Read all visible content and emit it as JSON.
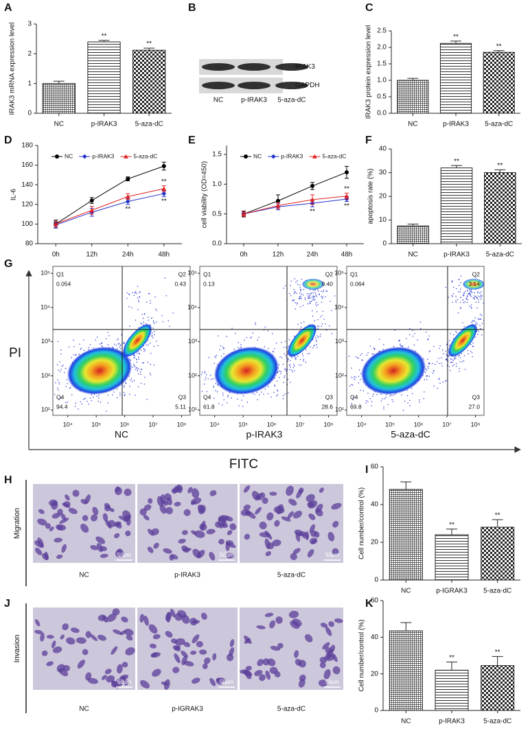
{
  "chart_data": [
    {
      "panel": "A",
      "type": "bar",
      "ylabel": "IRAK3 mRNA expression level",
      "categories": [
        "NC",
        "p-IRAK3",
        "5-aza-dC"
      ],
      "values": [
        1.0,
        2.4,
        2.12
      ],
      "errors": [
        0.08,
        0.05,
        0.07
      ],
      "significance": [
        null,
        "**",
        "**"
      ],
      "patterns": [
        "grid",
        "hlines",
        "checker"
      ],
      "color": "#222222",
      "ylim": [
        0,
        3
      ],
      "yticks": [
        0,
        1,
        2,
        3
      ]
    },
    {
      "panel": "C",
      "type": "bar",
      "ylabel": "IRAK3 protein expression level",
      "categories": [
        "NC",
        "p-IRAK3",
        "5-aza-dC"
      ],
      "values": [
        1.0,
        2.12,
        1.85
      ],
      "errors": [
        0.06,
        0.07,
        0.05
      ],
      "significance": [
        null,
        "**",
        "**"
      ],
      "patterns": [
        "grid",
        "hlines",
        "checker"
      ],
      "color": "#222222",
      "ylim": [
        0,
        2.5
      ],
      "yticks": [
        {
          "value": 0,
          "label": "0.0"
        },
        0.5,
        {
          "value": 1,
          "label": "1.0"
        },
        1.5,
        {
          "value": 2,
          "label": "2.0"
        },
        2.5
      ]
    },
    {
      "panel": "D",
      "type": "line",
      "ylabel": "IL-6",
      "categories": [
        "0h",
        "12h",
        "24h",
        "48h"
      ],
      "ylim": [
        80,
        180
      ],
      "yticks": [
        80,
        100,
        120,
        140,
        160,
        180
      ],
      "legend": "top",
      "series": [
        {
          "name": "NC",
          "color": "#000000",
          "marker": "circle",
          "values": [
            100,
            124,
            146,
            159
          ],
          "errors": [
            4,
            3,
            2,
            4
          ]
        },
        {
          "name": "p-IRAK3",
          "color": "#2233cc",
          "marker": "diamond",
          "values": [
            99,
            112,
            123,
            131
          ],
          "errors": [
            3,
            4,
            3,
            3
          ],
          "significance": [
            null,
            null,
            "**",
            "**"
          ]
        },
        {
          "name": "5-aza-dC",
          "color": "#e02020",
          "marker": "triangle",
          "values": [
            100,
            114,
            128,
            136
          ],
          "errors": [
            3,
            4,
            3,
            3
          ],
          "significance": [
            null,
            null,
            null,
            "**"
          ]
        }
      ]
    },
    {
      "panel": "E",
      "type": "line",
      "ylabel": "cell viability (OD=450)",
      "categories": [
        "0h",
        "12h",
        "24h",
        "48h"
      ],
      "ylim": [
        0,
        1.65
      ],
      "yticks": [
        {
          "value": 0,
          "label": "0.0"
        },
        0.5,
        {
          "value": 1,
          "label": "1.0"
        },
        1.5
      ],
      "legend": "top",
      "series": [
        {
          "name": "NC",
          "color": "#000000",
          "marker": "circle",
          "values": [
            0.5,
            0.72,
            0.97,
            1.2
          ],
          "errors": [
            0.05,
            0.1,
            0.06,
            0.1
          ]
        },
        {
          "name": "p-IRAK3",
          "color": "#2233cc",
          "marker": "diamond",
          "values": [
            0.5,
            0.62,
            0.68,
            0.75
          ],
          "errors": [
            0.04,
            0.05,
            0.06,
            0.04
          ],
          "significance": [
            null,
            null,
            "**",
            "**"
          ]
        },
        {
          "name": "5-aza-dC",
          "color": "#e02020",
          "marker": "triangle",
          "values": [
            0.5,
            0.64,
            0.74,
            0.8
          ],
          "errors": [
            0.04,
            0.05,
            0.08,
            0.05
          ],
          "significance": [
            null,
            null,
            null,
            "**"
          ]
        }
      ]
    },
    {
      "panel": "F",
      "type": "bar",
      "ylabel": "apoptosis rate (%)",
      "categories": [
        "NC",
        "p-IRAK3",
        "5-aza-dC"
      ],
      "values": [
        7.5,
        32,
        30
      ],
      "errors": [
        0.8,
        1,
        1.2
      ],
      "significance": [
        null,
        "**",
        "**"
      ],
      "patterns": [
        "grid",
        "hlines",
        "checker"
      ],
      "color": "#222222",
      "ylim": [
        0,
        40
      ],
      "yticks": [
        0,
        10,
        20,
        30,
        40
      ]
    },
    {
      "panel": "I",
      "type": "bar",
      "ylabel": "Cell number/control (%)",
      "categories": [
        "NC",
        "p-IGRAK3",
        "5-aza-dC"
      ],
      "values": [
        48,
        24,
        28
      ],
      "errors": [
        4,
        3,
        4
      ],
      "significance": [
        null,
        "**",
        "**"
      ],
      "patterns": [
        "grid",
        "hlines",
        "checker"
      ],
      "color": "#222222",
      "ylim": [
        0,
        60
      ],
      "yticks": [
        0,
        20,
        40,
        60
      ]
    },
    {
      "panel": "K",
      "type": "bar",
      "ylabel": "Cell number/control (%)",
      "categories": [
        "NC",
        "p-IRAK3",
        "5-aza-dC"
      ],
      "values": [
        43.5,
        22,
        24.5
      ],
      "errors": [
        4.5,
        4.5,
        5
      ],
      "significance": [
        null,
        "**",
        "**"
      ],
      "patterns": [
        "grid",
        "hlines",
        "checker"
      ],
      "color": "#222222",
      "ylim": [
        0,
        60
      ],
      "yticks": [
        0,
        20,
        40,
        60
      ]
    }
  ],
  "blot": {
    "panel": "B",
    "bands": [
      "IRAK3",
      "GAPDH"
    ],
    "lanes": [
      "NC",
      "p-IRAK3",
      "5-aza-dC"
    ]
  },
  "flow": {
    "panel": "G",
    "x_label": "FITC",
    "y_label": "PI",
    "log": true,
    "xlim": [
      3000,
      200000000
    ],
    "ylim": [
      7,
      160000
    ],
    "xticks": [
      {
        "value": 10000,
        "label": "10⁴"
      },
      {
        "value": 100000,
        "label": "10⁵"
      },
      {
        "value": 1000000,
        "label": "10⁶"
      },
      {
        "value": 10000000,
        "label": "10⁷"
      },
      {
        "value": 100000000,
        "label": "10⁸"
      }
    ],
    "yticks": [
      {
        "value": 10,
        "label": "10¹"
      },
      {
        "value": 100,
        "label": "10²"
      },
      {
        "value": 1000,
        "label": "10³"
      },
      {
        "value": 10000,
        "label": "10⁴"
      },
      {
        "value": 100000,
        "label": "10⁵"
      }
    ],
    "quadrant_names": [
      "Q1",
      "Q2",
      "Q3",
      "Q4"
    ],
    "plots": [
      {
        "name": "NC",
        "quadrants": [
          "0.054",
          "0.43",
          "5.11",
          "94.4"
        ]
      },
      {
        "name": "p-IRAK3",
        "quadrants": [
          "0.13",
          "9.40",
          "28.6",
          "61.8"
        ]
      },
      {
        "name": "5-aza-dC",
        "quadrants": [
          "0.064",
          "3.14",
          "27.0",
          "69.8"
        ]
      }
    ]
  },
  "micrographs": [
    {
      "panel": "H",
      "row_label": "Migration",
      "labels": [
        "NC",
        "p-IRAK3",
        "5-aza-dC"
      ],
      "scale_bar": "50µm"
    },
    {
      "panel": "J",
      "row_label": "Invasion",
      "labels": [
        "NC",
        "p-IGRAK3",
        "5-aza-dC"
      ],
      "scale_bar": "50µm"
    }
  ]
}
